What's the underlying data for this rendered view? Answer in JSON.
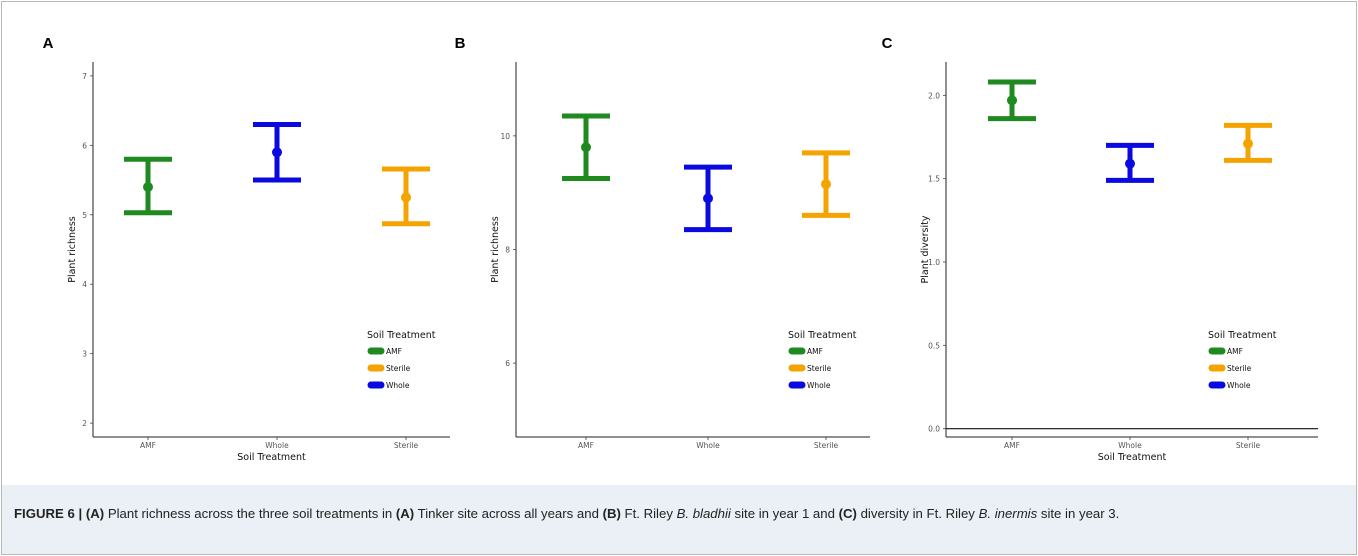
{
  "chart_data": [
    {
      "type": "errorbar",
      "panel_label": "A",
      "categories": [
        "AMF",
        "Whole",
        "Sterile"
      ],
      "series": [
        {
          "category": "AMF",
          "mean": 5.4,
          "lower": 5.03,
          "upper": 5.8,
          "color": "#1f8a1f"
        },
        {
          "category": "Whole",
          "mean": 5.9,
          "lower": 5.5,
          "upper": 6.3,
          "color": "#0a0ae0"
        },
        {
          "category": "Sterile",
          "mean": 5.25,
          "lower": 4.87,
          "upper": 5.66,
          "color": "#f4a300"
        }
      ],
      "xlabel": "Soil Treatment",
      "ylabel": "Plant richness",
      "ylim": [
        1.8,
        7.2
      ],
      "yticks": [
        2,
        3,
        4,
        5,
        6,
        7
      ],
      "ytick_labels": [
        "2",
        "3",
        "4",
        "5",
        "6",
        "7"
      ],
      "hline": null,
      "legend": {
        "title": "Soil Treatment",
        "position": "bottom-right",
        "entries": [
          {
            "label": "AMF",
            "color": "#1f8a1f"
          },
          {
            "label": "Sterile",
            "color": "#f4a300"
          },
          {
            "label": "Whole",
            "color": "#0a0ae0"
          }
        ]
      },
      "grid": false
    },
    {
      "type": "errorbar",
      "panel_label": "B",
      "categories": [
        "AMF",
        "Whole",
        "Sterile"
      ],
      "series": [
        {
          "category": "AMF",
          "mean": 9.8,
          "lower": 9.25,
          "upper": 10.35,
          "color": "#1f8a1f"
        },
        {
          "category": "Whole",
          "mean": 8.9,
          "lower": 8.35,
          "upper": 9.45,
          "color": "#0a0ae0"
        },
        {
          "category": "Sterile",
          "mean": 9.15,
          "lower": 8.6,
          "upper": 9.7,
          "color": "#f4a300"
        }
      ],
      "xlabel": "",
      "ylabel": "Plant richness",
      "ylim": [
        4.7,
        11.3
      ],
      "yticks": [
        6,
        8,
        10
      ],
      "ytick_labels": [
        "6",
        "8",
        "10"
      ],
      "hline": null,
      "legend": {
        "title": "Soil Treatment",
        "position": "bottom-right",
        "entries": [
          {
            "label": "AMF",
            "color": "#1f8a1f"
          },
          {
            "label": "Sterile",
            "color": "#f4a300"
          },
          {
            "label": "Whole",
            "color": "#0a0ae0"
          }
        ]
      },
      "grid": false
    },
    {
      "type": "errorbar",
      "panel_label": "C",
      "categories": [
        "AMF",
        "Whole",
        "Sterile"
      ],
      "series": [
        {
          "category": "AMF",
          "mean": 1.97,
          "lower": 1.86,
          "upper": 2.08,
          "color": "#1f8a1f"
        },
        {
          "category": "Whole",
          "mean": 1.59,
          "lower": 1.49,
          "upper": 1.7,
          "color": "#0a0ae0"
        },
        {
          "category": "Sterile",
          "mean": 1.71,
          "lower": 1.61,
          "upper": 1.82,
          "color": "#f4a300"
        }
      ],
      "xlabel": "Soil Treatment",
      "ylabel": "Plant diversity",
      "ylim": [
        -0.05,
        2.2
      ],
      "yticks": [
        0.0,
        0.5,
        1.0,
        1.5,
        2.0
      ],
      "ytick_labels": [
        "0.0",
        "0.5",
        "1.0",
        "1.5",
        "2.0"
      ],
      "hline": 0,
      "legend": {
        "title": "Soil Treatment",
        "position": "bottom-right",
        "entries": [
          {
            "label": "AMF",
            "color": "#1f8a1f"
          },
          {
            "label": "Sterile",
            "color": "#f4a300"
          },
          {
            "label": "Whole",
            "color": "#0a0ae0"
          }
        ]
      },
      "grid": false
    }
  ],
  "caption": {
    "label": "FIGURE 6 | ",
    "part1": "(A)",
    "text1": " Plant richness across the three soil treatments in ",
    "part2": "(A)",
    "text2": " Tinker site across all years and ",
    "part3": "(B)",
    "text3": " Ft. Riley ",
    "species1": "B. bladhii",
    "text4": " site in year 1 and ",
    "part4": "(C)",
    "text5": " diversity in Ft. Riley ",
    "species2": "B. inermis",
    "text6": " site in year 3."
  }
}
